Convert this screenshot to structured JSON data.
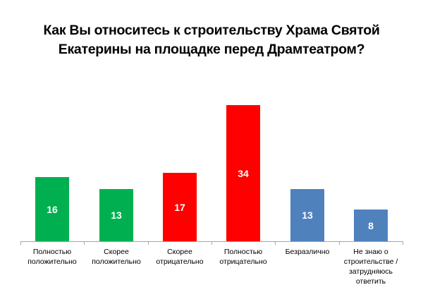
{
  "chart_data": {
    "type": "bar",
    "title": "Как Вы относитесь к строительству Храма Святой Екатерины на площадке перед Драмтеатром?",
    "title_lines": [
      "Как Вы относитесь к строительству Храма Святой",
      "Екатерины на площадке перед Драмтеатром?"
    ],
    "categories": [
      "Полностью положительно",
      "Скорее положительно",
      "Скорее отрицательно",
      "Полностью отрицательно",
      "Безразлично",
      "Не знаю о строительстве / затрудняюсь ответить"
    ],
    "category_lines": [
      [
        "Полностью",
        "положительно"
      ],
      [
        "Скорее",
        "положительно"
      ],
      [
        "Скорее",
        "отрицательно"
      ],
      [
        "Полностью",
        "отрицательно"
      ],
      [
        "Безразлично"
      ],
      [
        "Не знаю о",
        "строительстве /",
        "затрудняюсь",
        "ответить"
      ]
    ],
    "values": [
      16,
      13,
      17,
      34,
      13,
      8
    ],
    "value_labels": [
      "16",
      "13",
      "17",
      "34",
      "13",
      "8"
    ],
    "colors": [
      "#00B050",
      "#00B050",
      "#FF0000",
      "#FF0000",
      "#4F81BD",
      "#4F81BD"
    ],
    "xlabel": "",
    "ylabel": "",
    "ylim": [
      0,
      34
    ],
    "grid": false,
    "legend": "none",
    "data_labels": "inside"
  }
}
